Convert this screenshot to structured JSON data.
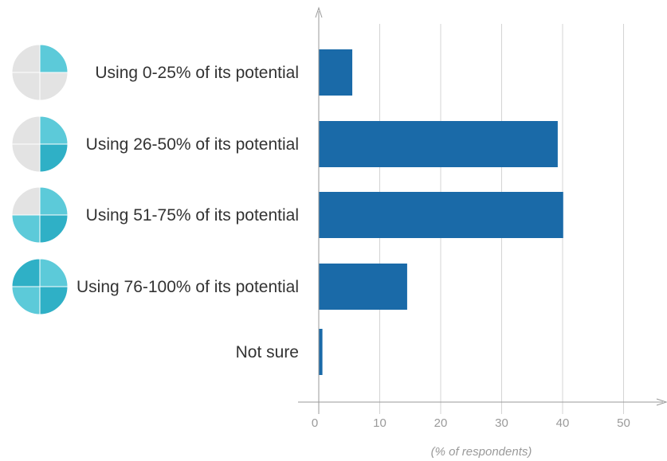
{
  "chart_data": {
    "type": "bar",
    "orientation": "horizontal",
    "categories": [
      "Using 0-25% of its potential",
      "Using 26-50% of its potential",
      "Using 51-75% of its potential",
      "Using 76-100% of its potential",
      "Not sure"
    ],
    "values": [
      5.5,
      39.2,
      40.1,
      14.5,
      0.6
    ],
    "filled_quarters": [
      1,
      2,
      3,
      4,
      null
    ],
    "xlabel": "(% of respondents)",
    "ylabel": "",
    "title": "",
    "xlim": [
      0,
      55
    ],
    "xticks": [
      0,
      10,
      20,
      30,
      40,
      50
    ],
    "grid": true,
    "colors": {
      "bar": "#1a6aa8",
      "quarter_filled_light": "#5ccad9",
      "quarter_filled_dark": "#2fb0c6",
      "quarter_empty": "#e3e3e3",
      "label": "#333333",
      "tick": "#9a9a9a",
      "grid": "#d4d4d4"
    }
  }
}
